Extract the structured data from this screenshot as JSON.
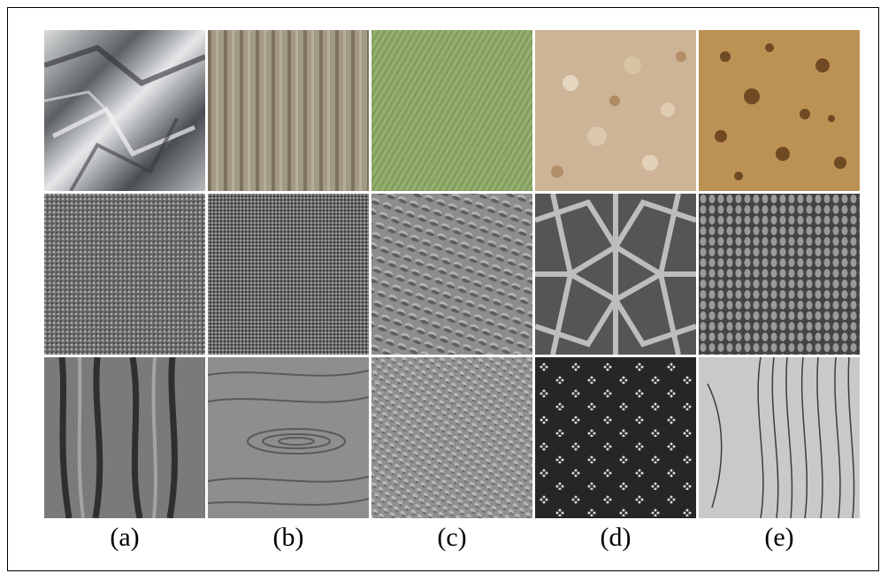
{
  "labels": [
    "(a)",
    "(b)",
    "(c)",
    "(d)",
    "(e)"
  ],
  "tiles": [
    {
      "name": "crumpled-foil-texture",
      "color": "#8a8d90"
    },
    {
      "name": "corduroy-fabric-texture",
      "color": "#9e937d"
    },
    {
      "name": "green-canvas-texture",
      "color": "#8faa6c"
    },
    {
      "name": "granular-speckled-texture",
      "color": "#c8ad8f"
    },
    {
      "name": "sponge-bread-texture",
      "color": "#b58a52"
    },
    {
      "name": "gray-woven-texture-1",
      "color": "#7a7a7a"
    },
    {
      "name": "gray-woven-texture-2",
      "color": "#6e6e6e"
    },
    {
      "name": "embossed-leather-texture",
      "color": "#8d8d8d"
    },
    {
      "name": "geometric-lattice-pattern",
      "color": "#9a9a9a"
    },
    {
      "name": "knit-weave-texture",
      "color": "#6b6b6b"
    },
    {
      "name": "tree-bark-texture",
      "color": "#5f5f5f"
    },
    {
      "name": "wood-grain-texture",
      "color": "#8c8c8c"
    },
    {
      "name": "pebbled-surface-texture",
      "color": "#8f8f8f"
    },
    {
      "name": "dark-dotted-fabric-texture",
      "color": "#2a2a2a"
    },
    {
      "name": "light-wood-grain-texture",
      "color": "#c7c7c7"
    }
  ]
}
